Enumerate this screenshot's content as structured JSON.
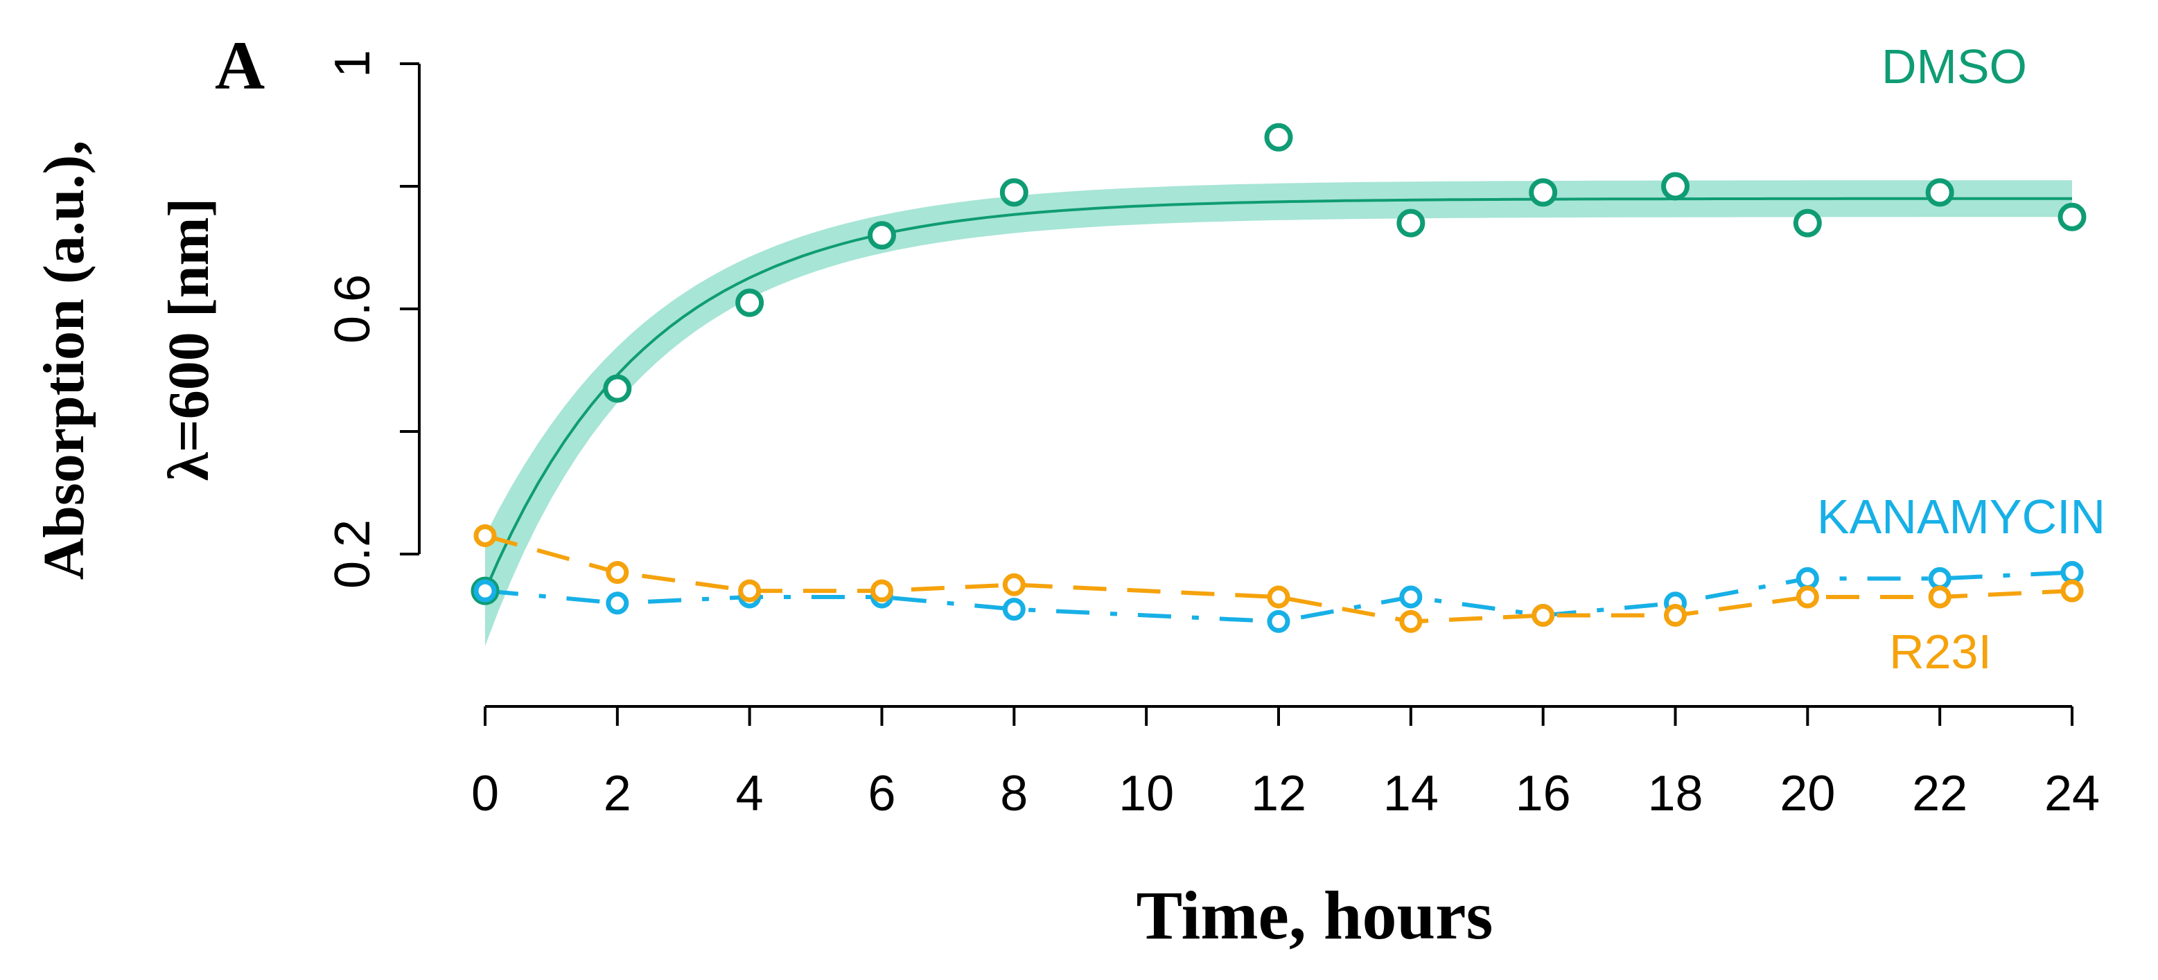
{
  "chart_data": {
    "type": "line",
    "panel_label": "A",
    "xlabel": "Time, hours",
    "ylabel_line1": "Absorption (a.u.),",
    "ylabel_line2": "λ=600 [nm]",
    "xlim": [
      0,
      24
    ],
    "ylim": [
      0.2,
      1.0
    ],
    "x_ticks": [
      0,
      2,
      4,
      6,
      8,
      10,
      12,
      14,
      16,
      18,
      20,
      22,
      24
    ],
    "x_tick_labels": [
      "0",
      "2",
      "4",
      "6",
      "8",
      "10",
      "12",
      "14",
      "16",
      "18",
      "20",
      "22",
      "24"
    ],
    "y_ticks": [
      0.2,
      0.4,
      0.6,
      0.8,
      1.0
    ],
    "y_tick_labels": [
      "0.2",
      "",
      "0.6",
      "",
      "1"
    ],
    "grid": false,
    "series": [
      {
        "name": "DMSO",
        "color": "#0f9c74",
        "band_color": "#5fd0b4",
        "line_style": "solid",
        "marker": "open-circle",
        "x": [
          0,
          2,
          4,
          6,
          8,
          12,
          14,
          16,
          18,
          20,
          22,
          24
        ],
        "values": [
          0.14,
          0.47,
          0.61,
          0.72,
          0.79,
          0.88,
          0.74,
          0.79,
          0.8,
          0.74,
          0.79,
          0.75
        ],
        "fit_formula": "0.78 - 0.64*exp(-x/2.5)",
        "band_halfwidth": 0.03
      },
      {
        "name": "KANAMYCIN",
        "color": "#17b0e6",
        "line_style": "dashdot",
        "marker": "open-circle",
        "x": [
          0,
          2,
          4,
          6,
          8,
          12,
          14,
          16,
          18,
          20,
          22,
          24
        ],
        "values": [
          0.14,
          0.12,
          0.13,
          0.13,
          0.11,
          0.09,
          0.13,
          0.1,
          0.12,
          0.16,
          0.16,
          0.17
        ]
      },
      {
        "name": "R23I",
        "color": "#f5a20c",
        "line_style": "dashed",
        "marker": "open-circle",
        "x": [
          0,
          2,
          4,
          6,
          8,
          12,
          14,
          16,
          18,
          20,
          22,
          24
        ],
        "values": [
          0.23,
          0.17,
          0.14,
          0.14,
          0.15,
          0.13,
          0.09,
          0.1,
          0.1,
          0.13,
          0.13,
          0.14
        ]
      }
    ]
  }
}
